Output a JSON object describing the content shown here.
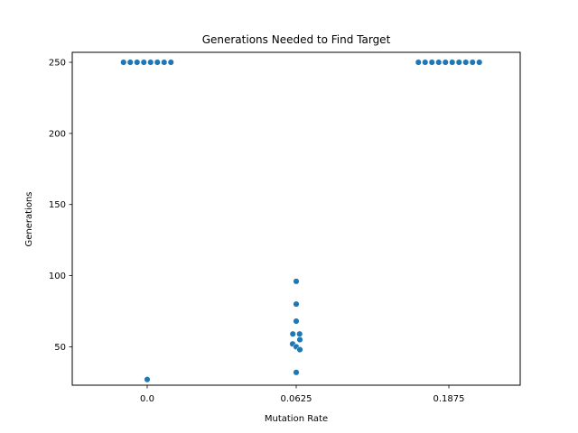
{
  "chart_data": {
    "type": "scatter",
    "title": "Generations Needed to Find Target",
    "xlabel": "Mutation Rate",
    "ylabel": "Generations",
    "categories": [
      "0.0",
      "0.0625",
      "0.1875"
    ],
    "ylim": [
      23,
      257
    ],
    "yticks": [
      50,
      100,
      150,
      200,
      250
    ],
    "grid": false,
    "marker_color": "#1f77b4",
    "series": [
      {
        "category": "0.0",
        "values": [
          250,
          250,
          250,
          250,
          250,
          250,
          250,
          250,
          27
        ]
      },
      {
        "category": "0.0625",
        "values": [
          96,
          80,
          68,
          59,
          59,
          55,
          52,
          50,
          48,
          32
        ]
      },
      {
        "category": "0.1875",
        "values": [
          250,
          250,
          250,
          250,
          250,
          250,
          250,
          250,
          250,
          250
        ]
      }
    ]
  }
}
